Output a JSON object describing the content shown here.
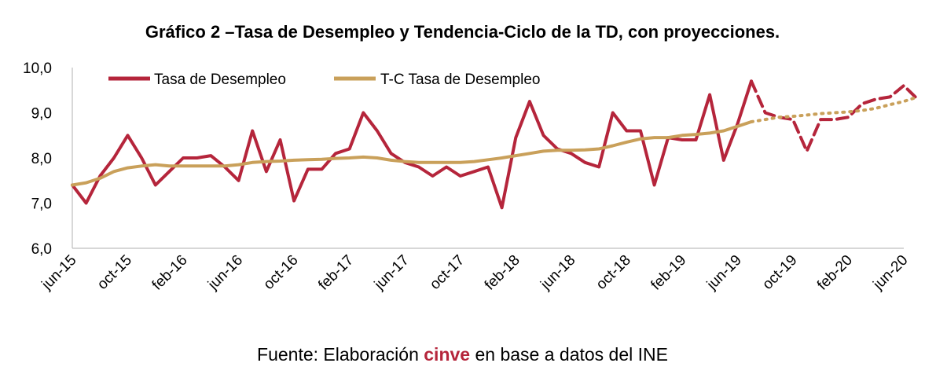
{
  "chart_data": {
    "type": "line",
    "title": "Gráfico 2 –Tasa de Desempleo y Tendencia-Ciclo de la TD, con proyecciones.",
    "xlabel": "",
    "ylabel": "",
    "ylim": [
      6.0,
      10.0
    ],
    "y_ticks": [
      "6,0",
      "7,0",
      "8,0",
      "9,0",
      "10,0"
    ],
    "x_tick_labels": [
      "jun-15",
      "oct-15",
      "feb-16",
      "jun-16",
      "oct-16",
      "feb-17",
      "jun-17",
      "oct-17",
      "feb-18",
      "jun-18",
      "oct-18",
      "feb-19",
      "jun-19",
      "oct-19",
      "feb-20",
      "jun-20"
    ],
    "x_tick_every": 4,
    "months": [
      "jun-15",
      "jul-15",
      "ago-15",
      "sep-15",
      "oct-15",
      "nov-15",
      "dic-15",
      "ene-16",
      "feb-16",
      "mar-16",
      "abr-16",
      "may-16",
      "jun-16",
      "jul-16",
      "ago-16",
      "sep-16",
      "oct-16",
      "nov-16",
      "dic-16",
      "ene-17",
      "feb-17",
      "mar-17",
      "abr-17",
      "may-17",
      "jun-17",
      "jul-17",
      "ago-17",
      "sep-17",
      "oct-17",
      "nov-17",
      "dic-17",
      "ene-18",
      "feb-18",
      "mar-18",
      "abr-18",
      "may-18",
      "jun-18",
      "jul-18",
      "ago-18",
      "sep-18",
      "oct-18",
      "nov-18",
      "dic-18",
      "ene-19",
      "feb-19",
      "mar-19",
      "abr-19",
      "may-19",
      "jun-19",
      "jul-19",
      "ago-19",
      "sep-19",
      "oct-19",
      "nov-19",
      "dic-19",
      "ene-20",
      "feb-20",
      "mar-20",
      "abr-20",
      "may-20",
      "jun-20"
    ],
    "grid": false,
    "legend_position": "top-left",
    "series": [
      {
        "name": "Tasa de Desempleo",
        "color": "#b5253b",
        "values": [
          7.4,
          7.0,
          7.6,
          8.0,
          8.5,
          8.0,
          7.4,
          7.7,
          8.0,
          8.0,
          8.05,
          7.8,
          7.5,
          8.6,
          7.7,
          8.4,
          7.05,
          7.75,
          7.75,
          8.1,
          8.2,
          9.0,
          8.6,
          8.1,
          7.9,
          7.8,
          7.6,
          7.8,
          7.6,
          7.7,
          7.8,
          6.9,
          8.45,
          9.25,
          8.5,
          8.2,
          8.1,
          7.9,
          7.8,
          9.0,
          8.6,
          8.6,
          7.4,
          8.45,
          8.4,
          8.4,
          9.4,
          7.95,
          8.75,
          9.7
        ],
        "projection_values": [
          9.7,
          9.0,
          8.9,
          8.85,
          8.15,
          8.85,
          8.85,
          8.9,
          9.2,
          9.3,
          9.35,
          9.6,
          9.3
        ]
      },
      {
        "name": "T-C Tasa de Desempleo",
        "color": "#c9a05a",
        "values": [
          7.4,
          7.45,
          7.55,
          7.7,
          7.78,
          7.82,
          7.85,
          7.82,
          7.82,
          7.82,
          7.82,
          7.82,
          7.85,
          7.9,
          7.92,
          7.93,
          7.95,
          7.96,
          7.97,
          7.99,
          8.0,
          8.02,
          8.0,
          7.95,
          7.92,
          7.9,
          7.9,
          7.9,
          7.9,
          7.92,
          7.96,
          8.0,
          8.05,
          8.1,
          8.15,
          8.17,
          8.17,
          8.18,
          8.2,
          8.27,
          8.35,
          8.42,
          8.45,
          8.45,
          8.5,
          8.52,
          8.55,
          8.6,
          8.7,
          8.8
        ],
        "projection_values": [
          8.8,
          8.85,
          8.9,
          8.92,
          8.95,
          8.98,
          9.0,
          9.02,
          9.05,
          9.1,
          9.18,
          9.25,
          9.35
        ]
      }
    ]
  },
  "source": {
    "prefix": "Fuente: Elaboración ",
    "brand": "cinve",
    "brand_color": "#b5253b",
    "suffix": " en base a datos del INE"
  }
}
